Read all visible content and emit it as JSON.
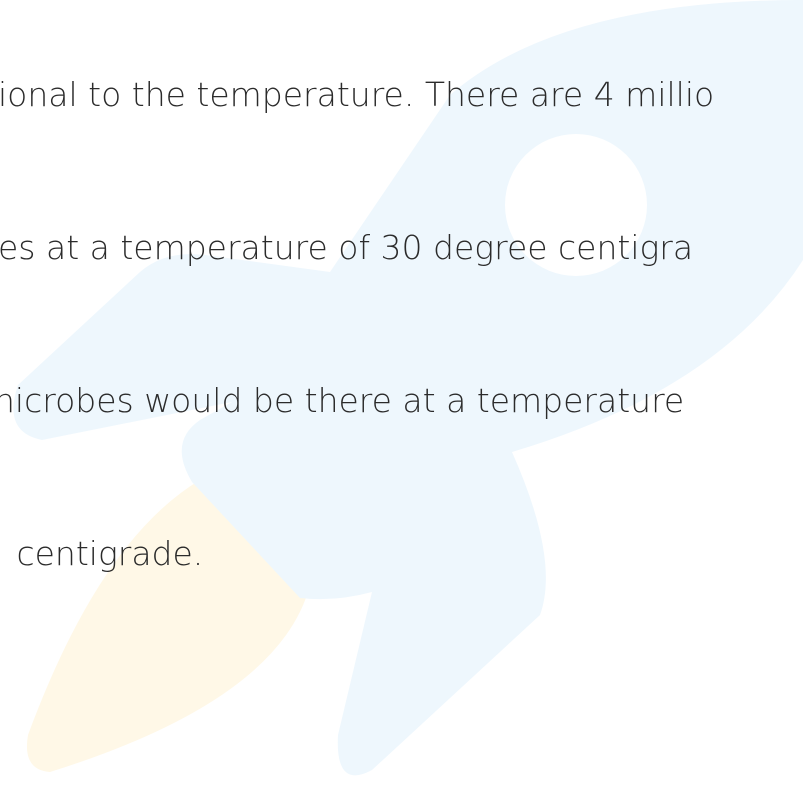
{
  "text": {
    "lines": [
      "ional to the temperature. There are 4 millio",
      "es at a temperature of 30 degree centigra",
      "nicrobes would be there at a temperature",
      " centigrade."
    ]
  }
}
